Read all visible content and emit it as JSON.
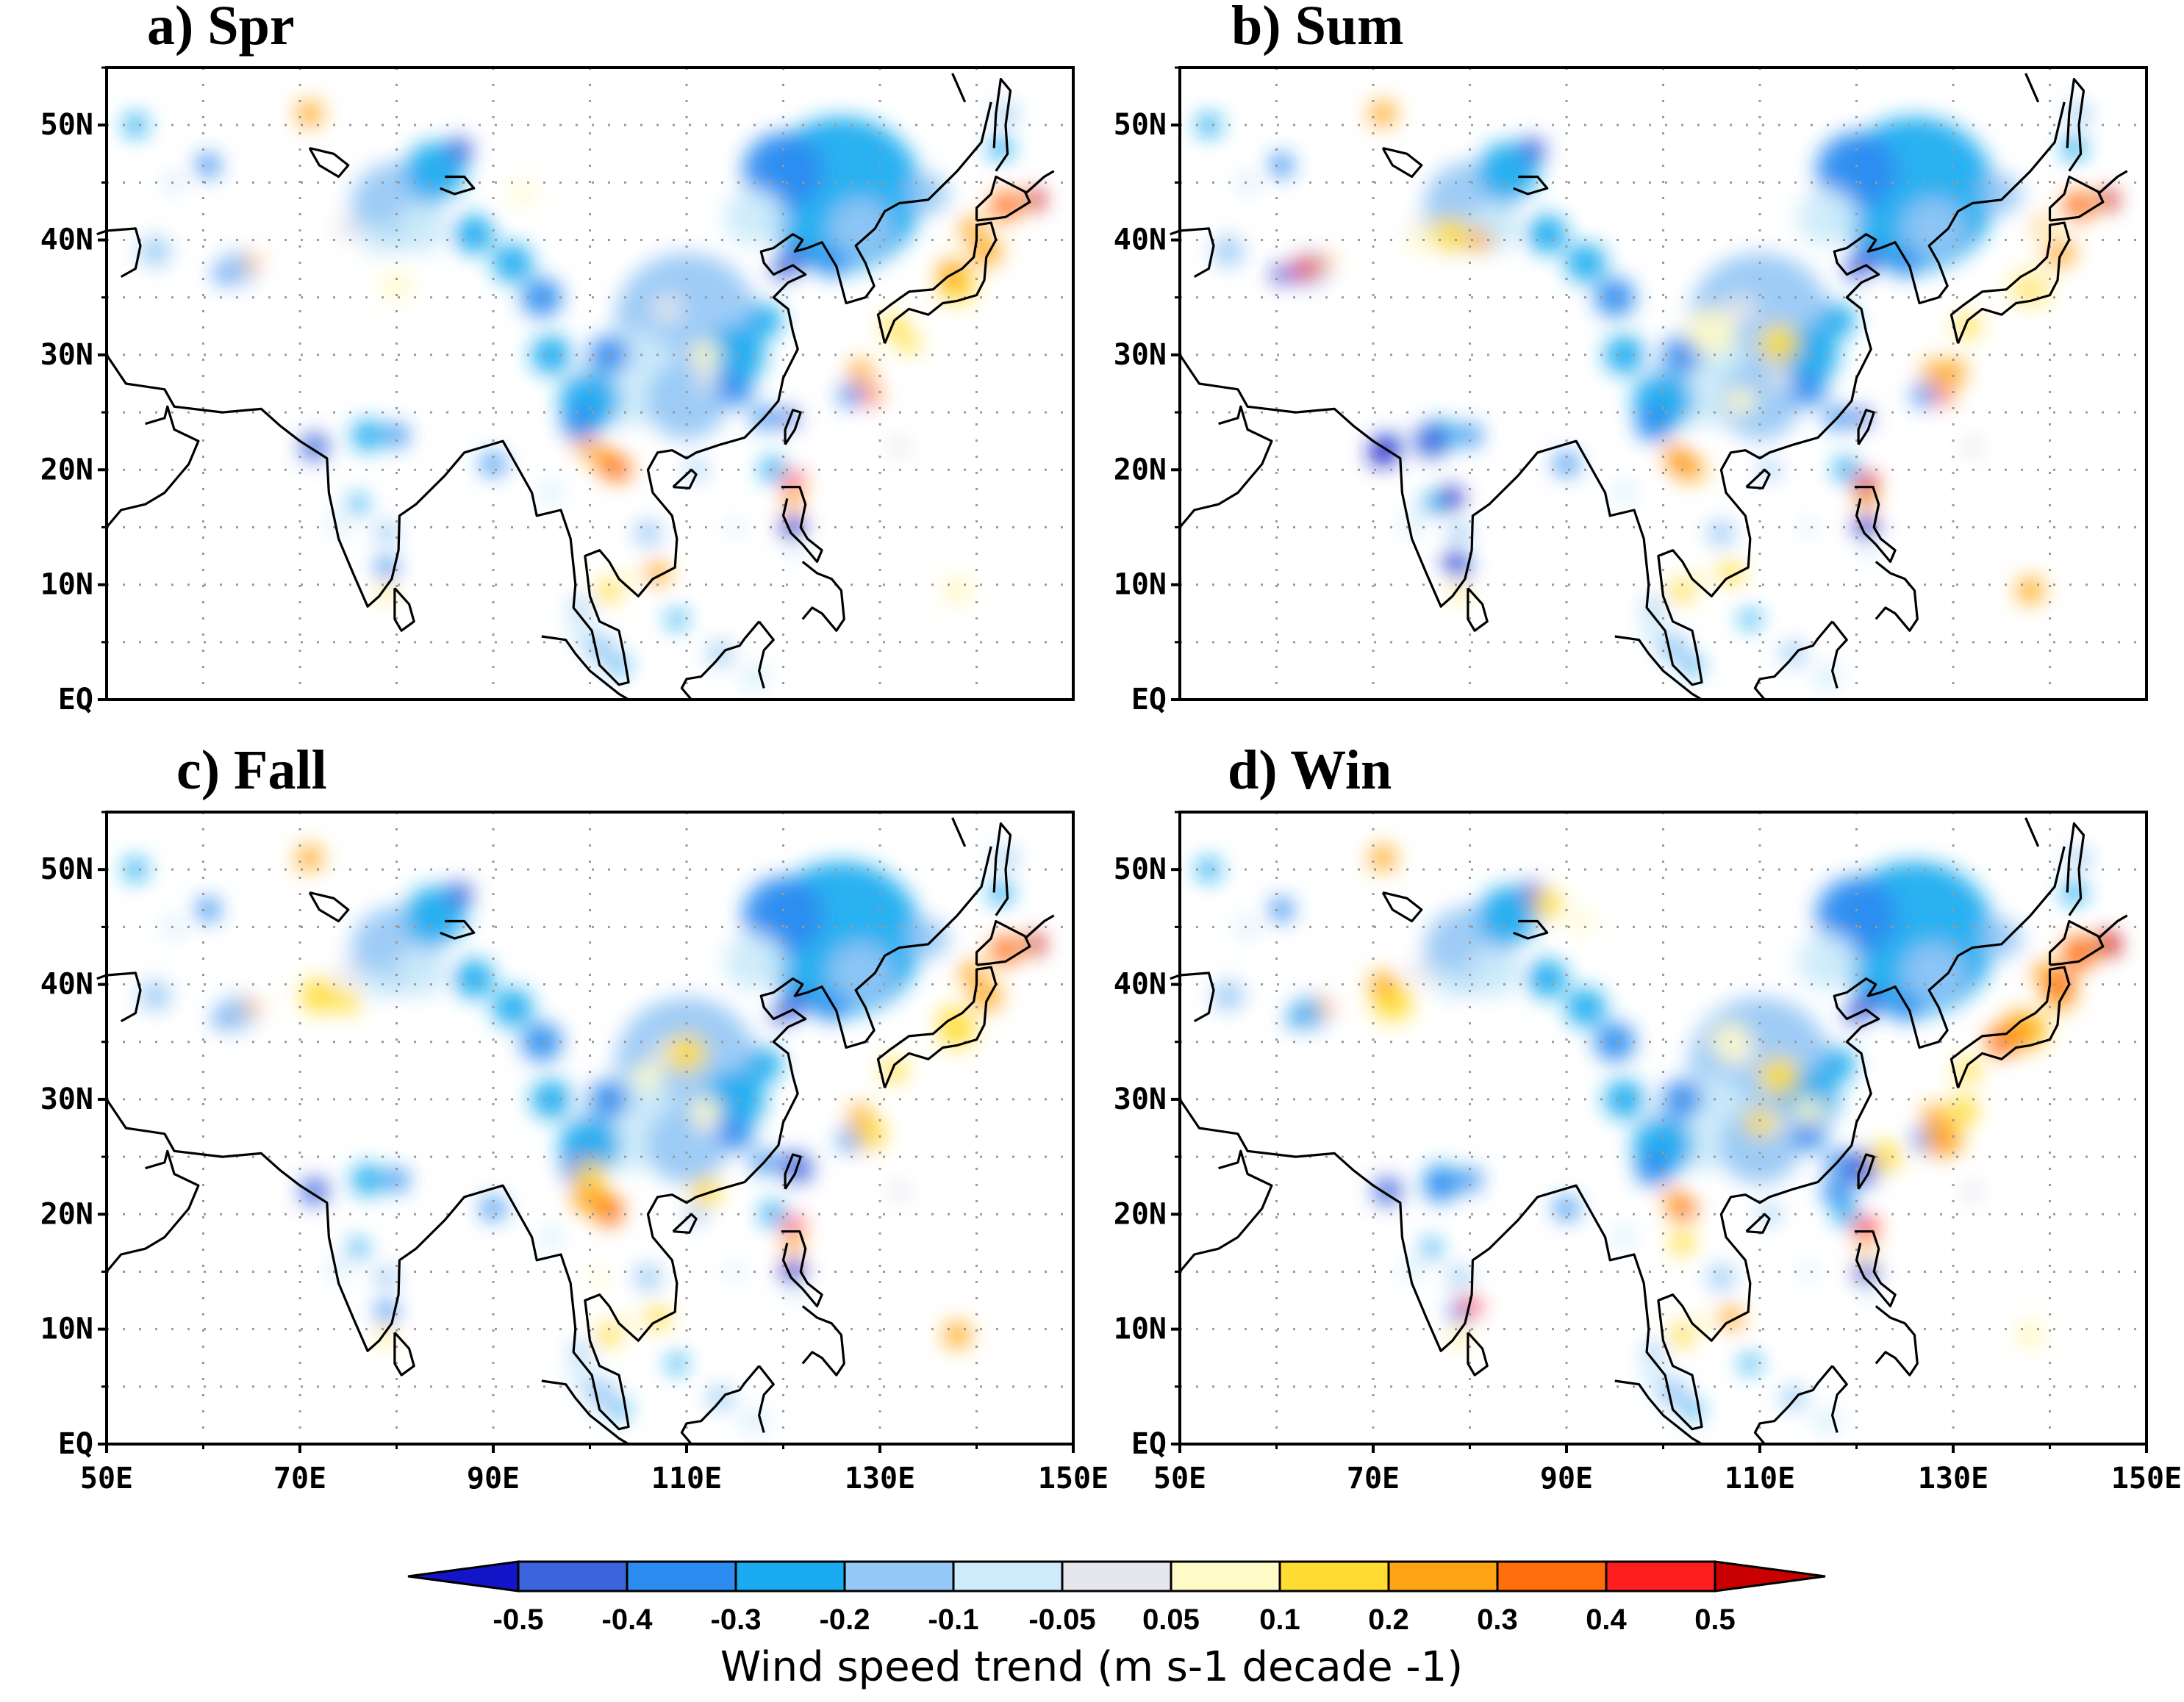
{
  "figure": {
    "colorbar": {
      "title": "Wind speed trend (m s-1 decade -1)",
      "labels": [
        "-0.5",
        "-0.4",
        "-0.3",
        "-0.2",
        "-0.1",
        "-0.05",
        "0.05",
        "0.1",
        "0.2",
        "0.3",
        "0.4",
        "0.5"
      ],
      "colors": [
        "#1414c8",
        "#3c64dc",
        "#2d8cf0",
        "#19aaf0",
        "#96c8f5",
        "#cdebfa",
        "#e6e6ee",
        "#fffac8",
        "#ffdc32",
        "#ffa514",
        "#ff6e0a",
        "#ff1e1e",
        "#c80000"
      ]
    },
    "axes": {
      "x_labels": [
        "50E",
        "70E",
        "90E",
        "110E",
        "130E",
        "150E"
      ],
      "y_labels": [
        "50N",
        "40N",
        "30N",
        "20N",
        "10N",
        "EQ"
      ],
      "lon_range": [
        50,
        150
      ],
      "lat_range": [
        0,
        55
      ],
      "gridlines": "dotted every 10 degrees"
    },
    "panels": [
      {
        "id": "spr",
        "title": "a) Spr"
      },
      {
        "id": "sum",
        "title": "b) Sum"
      },
      {
        "id": "fall",
        "title": "c) Fall"
      },
      {
        "id": "win",
        "title": "d) Win"
      }
    ]
  }
}
